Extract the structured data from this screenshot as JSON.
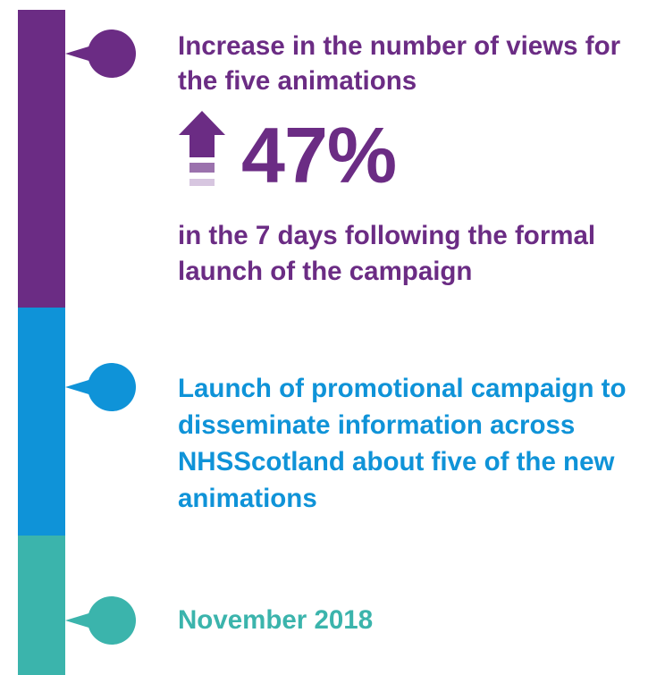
{
  "timeline": {
    "colors": {
      "purple": "#6b2c84",
      "blue": "#0f93d8",
      "teal": "#3bb4ac"
    },
    "events": [
      {
        "heading": "Increase in the number of views for the five animations",
        "stat": {
          "icon": "up-arrow-icon",
          "value": "47%"
        },
        "detail": "in the 7 days following the formal launch of the campaign",
        "color": "#6b2c84"
      },
      {
        "heading": "Launch of promotional campaign to disseminate information across NHSScotland about five of the new animations",
        "color": "#0f93d8"
      },
      {
        "heading": "November 2018",
        "color": "#3bb4ac"
      }
    ]
  }
}
